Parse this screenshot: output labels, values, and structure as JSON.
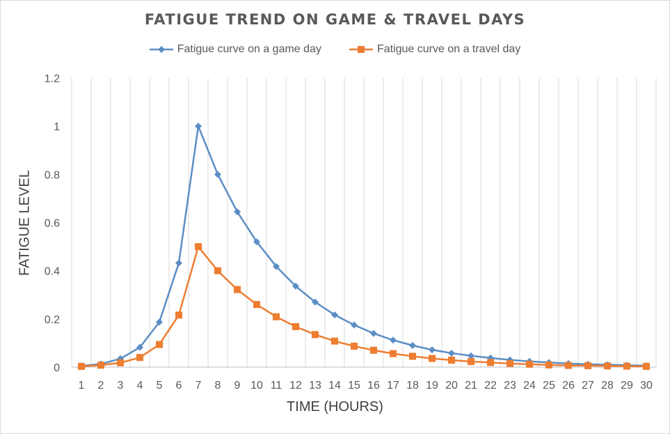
{
  "chart_data": {
    "type": "line",
    "title": "FATIGUE TREND ON GAME & TRAVEL DAYS",
    "xlabel": "TIME (HOURS)",
    "ylabel": "FATIGUE LEVEL",
    "x": [
      1,
      2,
      3,
      4,
      5,
      6,
      7,
      8,
      9,
      10,
      11,
      12,
      13,
      14,
      15,
      16,
      17,
      18,
      19,
      20,
      21,
      22,
      23,
      24,
      25,
      26,
      27,
      28,
      29,
      30
    ],
    "ylim": [
      0,
      1.2
    ],
    "yticks": [
      "0",
      "0.2",
      "0.4",
      "0.6",
      "0.8",
      "1",
      "1.2"
    ],
    "grid": "vertical",
    "legend_position": "top",
    "series": [
      {
        "name": "Fatigue curve on a game day",
        "color": "#5b8ec4",
        "marker": "diamond",
        "values": [
          0.005,
          0.013,
          0.035,
          0.082,
          0.187,
          0.432,
          1.0,
          0.8,
          0.645,
          0.52,
          0.418,
          0.336,
          0.27,
          0.217,
          0.175,
          0.14,
          0.112,
          0.09,
          0.072,
          0.058,
          0.047,
          0.038,
          0.03,
          0.024,
          0.019,
          0.015,
          0.012,
          0.01,
          0.008,
          0.006
        ]
      },
      {
        "name": "Fatigue curve on a travel day",
        "color": "#ed7d31",
        "marker": "square",
        "values": [
          0.003,
          0.008,
          0.018,
          0.04,
          0.094,
          0.216,
          0.5,
          0.4,
          0.322,
          0.26,
          0.209,
          0.168,
          0.135,
          0.108,
          0.087,
          0.07,
          0.056,
          0.045,
          0.036,
          0.029,
          0.023,
          0.019,
          0.015,
          0.012,
          0.009,
          0.007,
          0.006,
          0.005,
          0.004,
          0.003
        ]
      }
    ]
  }
}
